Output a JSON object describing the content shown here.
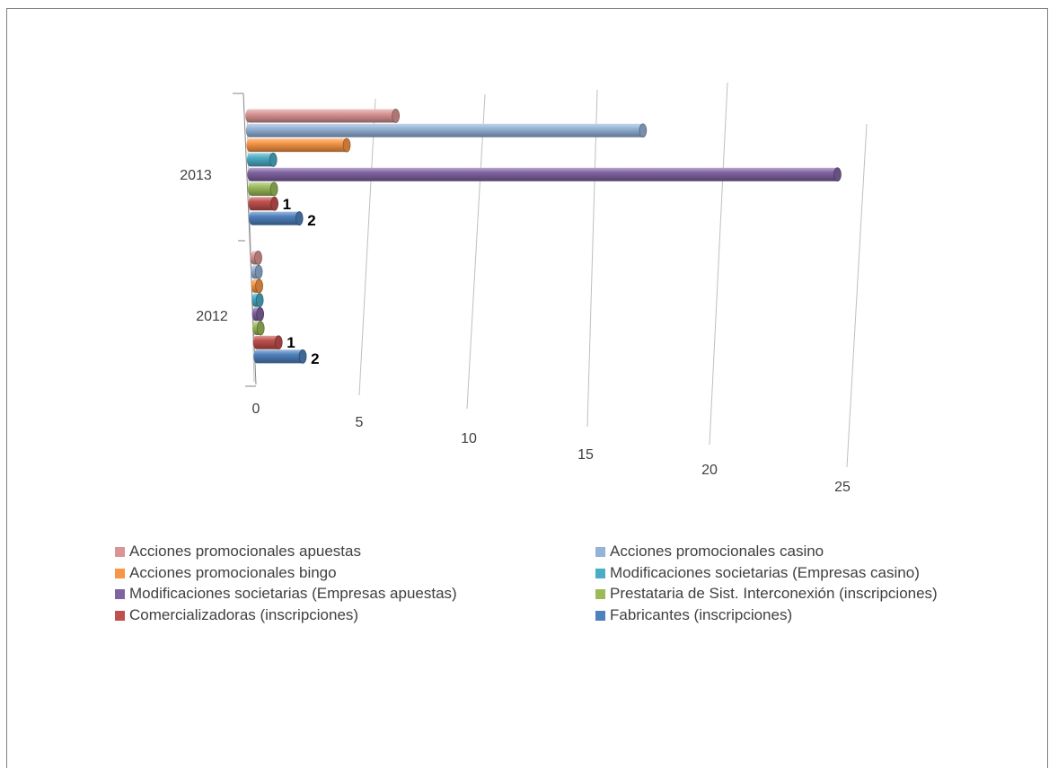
{
  "chart_data": {
    "type": "bar",
    "orientation": "horizontal",
    "style": "3d-cylinder",
    "categories": [
      "2013",
      "2012"
    ],
    "x_ticks": [
      "0",
      "5",
      "10",
      "15",
      "20",
      "25"
    ],
    "xlim": [
      0,
      25
    ],
    "grid": true,
    "legend_position": "bottom",
    "series": [
      {
        "name": "Acciones promocionales apuestas",
        "color": "#d99594",
        "values": [
          6,
          0
        ]
      },
      {
        "name": "Acciones promocionales casino",
        "color": "#95b3d7",
        "values": [
          16,
          0
        ]
      },
      {
        "name": "Acciones promocionales bingo",
        "color": "#f79646",
        "values": [
          4,
          0
        ]
      },
      {
        "name": "Modificaciones societarias (Empresas casino)",
        "color": "#4bacc6",
        "values": [
          1,
          0
        ]
      },
      {
        "name": "Modificaciones societarias (Empresas apuestas)",
        "color": "#8064a2",
        "values": [
          24,
          0
        ]
      },
      {
        "name": "Prestataria de Sist. Interconexión (inscripciones)",
        "color": "#9bbb59",
        "values": [
          1,
          0
        ]
      },
      {
        "name": "Comercializadoras (inscripciones)",
        "color": "#c0504d",
        "values": [
          1,
          1
        ]
      },
      {
        "name": "Fabricantes (inscripciones)",
        "color": "#4f81bd",
        "values": [
          2,
          2
        ]
      }
    ],
    "data_labels": [
      {
        "category": "2013",
        "series": "Comercializadoras (inscripciones)",
        "text": "1"
      },
      {
        "category": "2013",
        "series": "Fabricantes (inscripciones)",
        "text": "2"
      },
      {
        "category": "2012",
        "series": "Comercializadoras (inscripciones)",
        "text": "1"
      },
      {
        "category": "2012",
        "series": "Fabricantes (inscripciones)",
        "text": "2"
      }
    ]
  }
}
